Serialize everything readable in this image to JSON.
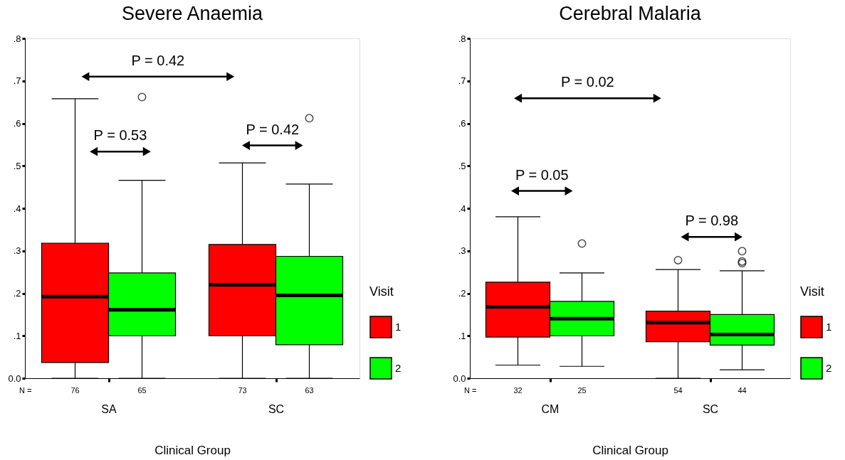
{
  "chart_data": [
    {
      "type": "box",
      "title": "Severe Anaemia",
      "xlabel": "Clinical Group",
      "legend_title": "Visit",
      "legend": "right",
      "categories": [
        "SA",
        "SC"
      ],
      "series": [
        {
          "name": "1",
          "color": "#ff0000",
          "value_labels": [
            "76",
            "73"
          ],
          "boxes": [
            {
              "low": 0,
              "q1": 0.037,
              "median": 0.192,
              "q3": 0.318,
              "high": 0.658
            },
            {
              "low": 0,
              "q1": 0.1,
              "median": 0.22,
              "q3": 0.315,
              "high": 0.507
            }
          ]
        },
        {
          "name": "2",
          "color": "#00ff00",
          "value_labels": [
            "65",
            "63"
          ],
          "boxes": [
            {
              "low": 0,
              "q1": 0.1,
              "median": 0.161,
              "q3": 0.248,
              "high": 0.466,
              "outliers": [
                0.662
              ]
            },
            {
              "low": 0,
              "q1": 0.079,
              "median": 0.195,
              "q3": 0.287,
              "high": 0.457,
              "outliers": [
                0.612
              ]
            }
          ]
        }
      ],
      "ylim": [
        0,
        0.8
      ],
      "yticks": [
        {
          "value": 0,
          "label": "0.0"
        },
        {
          "value": 0.1,
          "label": ".1"
        },
        {
          "value": 0.2,
          "label": ".2"
        },
        {
          "value": 0.3,
          "label": ".3"
        },
        {
          "value": 0.4,
          "label": ".4"
        },
        {
          "value": 0.5,
          "label": ".5"
        },
        {
          "value": 0.6,
          "label": ".6"
        },
        {
          "value": 0.7,
          "label": ".7"
        },
        {
          "value": 0.8,
          "label": ".8"
        }
      ],
      "annotations": [
        "N =",
        "P = 0.42",
        "P = 0.53",
        "P = 0.42"
      ]
    },
    {
      "type": "box",
      "title": "Cerebral Malaria",
      "xlabel": "Clinical Group",
      "legend_title": "Visit",
      "legend": "right",
      "categories": [
        "CM",
        "SC"
      ],
      "series": [
        {
          "name": "1",
          "color": "#ff0000",
          "value_labels": [
            "32",
            "54"
          ],
          "boxes": [
            {
              "low": 0.031,
              "q1": 0.097,
              "median": 0.168,
              "q3": 0.226,
              "high": 0.38
            },
            {
              "low": 0,
              "q1": 0.086,
              "median": 0.131,
              "q3": 0.158,
              "high": 0.256,
              "outliers": [
                0.278
              ]
            }
          ]
        },
        {
          "name": "2",
          "color": "#00ff00",
          "value_labels": [
            "25",
            "44"
          ],
          "boxes": [
            {
              "low": 0.028,
              "q1": 0.1,
              "median": 0.14,
              "q3": 0.181,
              "high": 0.248,
              "outliers": [
                0.317
              ]
            },
            {
              "low": 0.02,
              "q1": 0.078,
              "median": 0.103,
              "q3": 0.15,
              "high": 0.253,
              "outliers": [
                0.299,
                0.275,
                0.271
              ]
            }
          ]
        }
      ],
      "ylim": [
        0,
        0.8
      ],
      "yticks": [
        {
          "value": 0,
          "label": "0.0"
        },
        {
          "value": 0.1,
          "label": ".1"
        },
        {
          "value": 0.2,
          "label": ".2"
        },
        {
          "value": 0.3,
          "label": ".3"
        },
        {
          "value": 0.4,
          "label": ".4"
        },
        {
          "value": 0.5,
          "label": ".5"
        },
        {
          "value": 0.6,
          "label": ".6"
        },
        {
          "value": 0.7,
          "label": ".7"
        },
        {
          "value": 0.8,
          "label": ".8"
        }
      ],
      "annotations": [
        "N =",
        "P = 0.02",
        "P = 0.05",
        "P = 0.98"
      ]
    }
  ]
}
